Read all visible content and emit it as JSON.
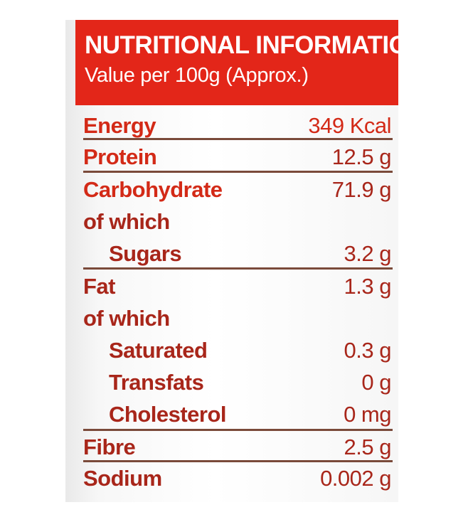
{
  "header": {
    "title": "NUTRITIONAL INFORMATION",
    "subtitle": "Value per 100g (Approx.)"
  },
  "rows": [
    {
      "name": "Energy",
      "value": "349 Kcal"
    },
    {
      "name": "Protein",
      "value": "12.5 g"
    },
    {
      "name": "Carbohydrate",
      "value": "71.9 g"
    },
    {
      "name": "of which",
      "value": ""
    },
    {
      "name": "Sugars",
      "value": "3.2 g"
    },
    {
      "name": "Fat",
      "value": "1.3 g"
    },
    {
      "name": "of which",
      "value": ""
    },
    {
      "name": "Saturated",
      "value": "0.3 g"
    },
    {
      "name": "Transfats",
      "value": "0 g"
    },
    {
      "name": "Cholesterol",
      "value": "0 mg"
    },
    {
      "name": "Fibre",
      "value": "2.5 g"
    },
    {
      "name": "Sodium",
      "value": "0.002 g"
    }
  ],
  "colors": {
    "header_bg": "#e32619",
    "label_red": "#d32a17",
    "value_brown": "#a8261a",
    "rule": "#7a4a3a"
  }
}
